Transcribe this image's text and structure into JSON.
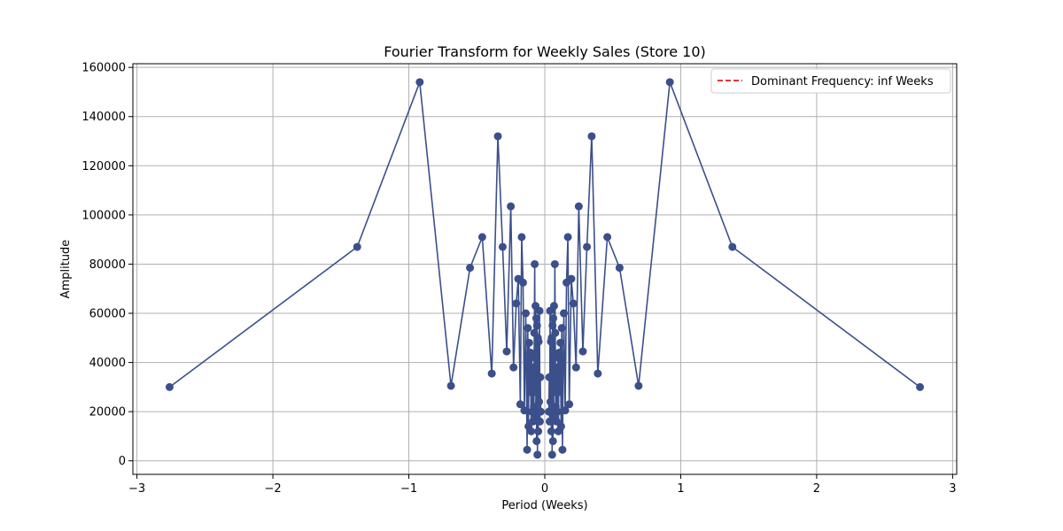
{
  "chart_data": {
    "type": "line",
    "title": "Fourier Transform for Weekly Sales (Store 10)",
    "xlabel": "Period (Weeks)",
    "ylabel": "Amplitude",
    "xlim": [
      -3.03,
      3.03
    ],
    "ylim": [
      -5500,
      161500
    ],
    "xticks": [
      -3,
      -2,
      -1,
      0,
      1,
      2,
      3
    ],
    "xtick_labels": [
      "−3",
      "−2",
      "−1",
      "0",
      "1",
      "2",
      "3"
    ],
    "yticks": [
      0,
      20000,
      40000,
      60000,
      80000,
      100000,
      120000,
      140000,
      160000
    ],
    "ytick_labels": [
      "0",
      "20000",
      "40000",
      "60000",
      "80000",
      "100000",
      "120000",
      "140000",
      "160000"
    ],
    "grid": true,
    "legend": {
      "position": "top-right",
      "entries": [
        {
          "label": "Dominant Frequency: inf Weeks",
          "color": "#e41a1c",
          "style": "dashed"
        }
      ]
    },
    "series": [
      {
        "color": "#3b4f8a",
        "marker": "circle",
        "points": [
          [
            -2.76,
            30000
          ],
          [
            -1.38,
            87000
          ],
          [
            -0.92,
            154000
          ],
          [
            -0.69,
            30500
          ],
          [
            -0.55,
            78500
          ],
          [
            -0.46,
            91000
          ],
          [
            -0.39,
            35500
          ],
          [
            -0.345,
            132000
          ],
          [
            -0.31,
            87000
          ],
          [
            -0.28,
            44500
          ],
          [
            -0.25,
            103500
          ],
          [
            -0.23,
            38000
          ],
          [
            -0.21,
            64000
          ],
          [
            -0.195,
            74000
          ],
          [
            -0.18,
            23000
          ],
          [
            -0.17,
            91000
          ],
          [
            -0.16,
            72500
          ],
          [
            -0.15,
            20500
          ],
          [
            -0.14,
            60000
          ],
          [
            -0.13,
            4500
          ],
          [
            -0.125,
            54000
          ],
          [
            -0.12,
            14000
          ],
          [
            -0.115,
            48000
          ],
          [
            -0.11,
            28000
          ],
          [
            -0.105,
            44000
          ],
          [
            -0.1,
            12000
          ],
          [
            -0.097,
            42000
          ],
          [
            -0.094,
            20000
          ],
          [
            -0.09,
            38000
          ],
          [
            -0.087,
            16000
          ],
          [
            -0.084,
            36000
          ],
          [
            -0.08,
            22000
          ],
          [
            -0.077,
            52000
          ],
          [
            -0.074,
            80000
          ],
          [
            -0.071,
            28000
          ],
          [
            -0.068,
            63000
          ],
          [
            -0.065,
            18000
          ],
          [
            -0.062,
            58000
          ],
          [
            -0.06,
            8000
          ],
          [
            -0.057,
            55000
          ],
          [
            -0.054,
            2500
          ],
          [
            -0.051,
            50000
          ],
          [
            -0.048,
            12000
          ],
          [
            -0.045,
            48500
          ],
          [
            -0.042,
            24000
          ],
          [
            -0.039,
            61000
          ],
          [
            -0.036,
            16000
          ],
          [
            -0.033,
            34000
          ],
          [
            -0.03,
            20000
          ],
          [
            0.03,
            20000
          ],
          [
            0.033,
            34000
          ],
          [
            0.036,
            16000
          ],
          [
            0.039,
            61000
          ],
          [
            0.042,
            24000
          ],
          [
            0.045,
            48500
          ],
          [
            0.048,
            12000
          ],
          [
            0.051,
            50000
          ],
          [
            0.054,
            2500
          ],
          [
            0.057,
            55000
          ],
          [
            0.06,
            8000
          ],
          [
            0.062,
            58000
          ],
          [
            0.065,
            18000
          ],
          [
            0.068,
            63000
          ],
          [
            0.071,
            28000
          ],
          [
            0.074,
            80000
          ],
          [
            0.077,
            52000
          ],
          [
            0.08,
            22000
          ],
          [
            0.084,
            36000
          ],
          [
            0.087,
            16000
          ],
          [
            0.09,
            38000
          ],
          [
            0.094,
            20000
          ],
          [
            0.097,
            42000
          ],
          [
            0.1,
            12000
          ],
          [
            0.105,
            44000
          ],
          [
            0.11,
            28000
          ],
          [
            0.115,
            48000
          ],
          [
            0.12,
            14000
          ],
          [
            0.125,
            54000
          ],
          [
            0.13,
            4500
          ],
          [
            0.14,
            60000
          ],
          [
            0.15,
            20500
          ],
          [
            0.16,
            72500
          ],
          [
            0.17,
            91000
          ],
          [
            0.18,
            23000
          ],
          [
            0.195,
            74000
          ],
          [
            0.21,
            64000
          ],
          [
            0.23,
            38000
          ],
          [
            0.25,
            103500
          ],
          [
            0.28,
            44500
          ],
          [
            0.31,
            87000
          ],
          [
            0.345,
            132000
          ],
          [
            0.39,
            35500
          ],
          [
            0.46,
            91000
          ],
          [
            0.55,
            78500
          ],
          [
            0.69,
            30500
          ],
          [
            0.92,
            154000
          ],
          [
            1.38,
            87000
          ],
          [
            2.76,
            30000
          ]
        ]
      }
    ]
  }
}
